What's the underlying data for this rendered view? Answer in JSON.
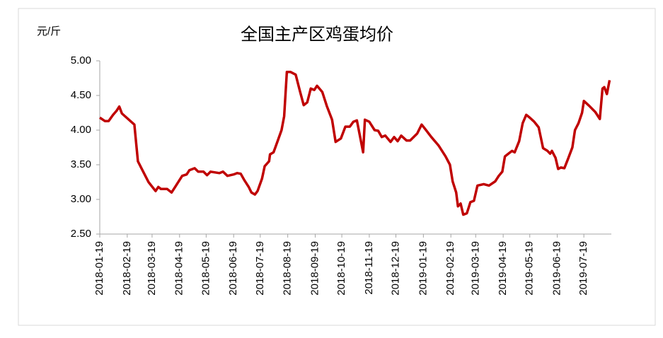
{
  "chart_data": {
    "type": "line",
    "title": "全国主产区鸡蛋均价",
    "y_label": "元/斤",
    "x": [
      "2018-01-19",
      "2018-01-25",
      "2018-01-29",
      "2018-02-03",
      "2018-02-07",
      "2018-02-10",
      "2018-02-13",
      "2018-02-27",
      "2018-03-03",
      "2018-03-07",
      "2018-03-15",
      "2018-03-23",
      "2018-03-26",
      "2018-03-29",
      "2018-04-05",
      "2018-04-10",
      "2018-04-14",
      "2018-04-22",
      "2018-04-27",
      "2018-04-30",
      "2018-05-06",
      "2018-05-10",
      "2018-05-16",
      "2018-05-20",
      "2018-05-24",
      "2018-06-03",
      "2018-06-07",
      "2018-06-12",
      "2018-06-19",
      "2018-06-23",
      "2018-06-27",
      "2018-07-01",
      "2018-07-06",
      "2018-07-09",
      "2018-07-13",
      "2018-07-16",
      "2018-07-21",
      "2018-07-24",
      "2018-07-29",
      "2018-07-30",
      "2018-08-03",
      "2018-08-07",
      "2018-08-12",
      "2018-08-15",
      "2018-08-18",
      "2018-08-22",
      "2018-08-28",
      "2018-09-02",
      "2018-09-06",
      "2018-09-10",
      "2018-09-14",
      "2018-09-18",
      "2018-09-21",
      "2018-09-27",
      "2018-10-02",
      "2018-10-08",
      "2018-10-12",
      "2018-10-18",
      "2018-10-23",
      "2018-10-28",
      "2018-11-01",
      "2018-11-05",
      "2018-11-12",
      "2018-11-14",
      "2018-11-19",
      "2018-11-25",
      "2018-11-29",
      "2018-12-03",
      "2018-12-07",
      "2018-12-13",
      "2018-12-17",
      "2018-12-21",
      "2018-12-25",
      "2018-12-31",
      "2019-01-04",
      "2019-01-12",
      "2019-01-17",
      "2019-01-22",
      "2019-01-28",
      "2019-02-05",
      "2019-02-13",
      "2019-02-18",
      "2019-02-21",
      "2019-02-25",
      "2019-02-27",
      "2019-03-02",
      "2019-03-05",
      "2019-03-09",
      "2019-03-13",
      "2019-03-17",
      "2019-03-21",
      "2019-03-28",
      "2019-04-03",
      "2019-04-10",
      "2019-04-14",
      "2019-04-18",
      "2019-04-21",
      "2019-04-25",
      "2019-04-29",
      "2019-05-02",
      "2019-05-07",
      "2019-05-11",
      "2019-05-15",
      "2019-05-19",
      "2019-05-24",
      "2019-05-29",
      "2019-06-03",
      "2019-06-08",
      "2019-06-11",
      "2019-06-13",
      "2019-06-17",
      "2019-06-20",
      "2019-06-23",
      "2019-06-27",
      "2019-07-01",
      "2019-07-06",
      "2019-07-09",
      "2019-07-13",
      "2019-07-17",
      "2019-07-19",
      "2019-07-25",
      "2019-08-01",
      "2019-08-06",
      "2019-08-09",
      "2019-08-11",
      "2019-08-14",
      "2019-08-17"
    ],
    "series": [
      {
        "color": "#c00000",
        "values": [
          4.18,
          4.13,
          4.13,
          4.22,
          4.28,
          4.34,
          4.24,
          4.08,
          3.55,
          3.45,
          3.25,
          3.12,
          3.18,
          3.15,
          3.15,
          3.1,
          3.18,
          3.34,
          3.36,
          3.42,
          3.45,
          3.4,
          3.4,
          3.35,
          3.4,
          3.38,
          3.4,
          3.34,
          3.36,
          3.38,
          3.37,
          3.28,
          3.18,
          3.1,
          3.07,
          3.12,
          3.3,
          3.48,
          3.55,
          3.65,
          3.68,
          3.82,
          4.0,
          4.2,
          4.84,
          4.84,
          4.8,
          4.55,
          4.36,
          4.4,
          4.6,
          4.58,
          4.64,
          4.55,
          4.35,
          4.15,
          3.83,
          3.88,
          4.05,
          4.05,
          4.12,
          4.14,
          3.68,
          4.15,
          4.12,
          4.0,
          3.99,
          3.9,
          3.92,
          3.83,
          3.9,
          3.84,
          3.92,
          3.85,
          3.85,
          3.95,
          4.08,
          4.0,
          3.9,
          3.78,
          3.62,
          3.5,
          3.26,
          3.1,
          2.9,
          2.94,
          2.78,
          2.8,
          2.96,
          2.98,
          3.2,
          3.22,
          3.2,
          3.26,
          3.34,
          3.4,
          3.62,
          3.66,
          3.7,
          3.68,
          3.84,
          4.1,
          4.22,
          4.18,
          4.12,
          4.04,
          3.74,
          3.7,
          3.66,
          3.7,
          3.6,
          3.44,
          3.46,
          3.45,
          3.58,
          3.75,
          4.0,
          4.1,
          4.25,
          4.42,
          4.35,
          4.26,
          4.16,
          4.6,
          4.62,
          4.52,
          4.72
        ]
      }
    ],
    "xlim": [
      "2018-01-19",
      "2019-08-19"
    ],
    "xticks": [
      "2018-01-19",
      "2018-02-19",
      "2018-03-19",
      "2018-04-19",
      "2018-05-19",
      "2018-06-19",
      "2018-07-19",
      "2018-08-19",
      "2018-09-19",
      "2018-10-19",
      "2018-11-19",
      "2018-12-19",
      "2019-01-19",
      "2019-02-19",
      "2019-03-19",
      "2019-04-19",
      "2019-05-19",
      "2019-06-19",
      "2019-07-19"
    ],
    "ylim": [
      2.5,
      5
    ],
    "yticks": [
      {
        "value": 2.5,
        "label": "2.50"
      },
      {
        "value": 3,
        "label": "3.00"
      },
      {
        "value": 3.5,
        "label": "3.50"
      },
      {
        "value": 4,
        "label": "4.00"
      },
      {
        "value": 4.5,
        "label": "4.50"
      },
      {
        "value": 5,
        "label": "5.00"
      }
    ],
    "grid": false
  }
}
